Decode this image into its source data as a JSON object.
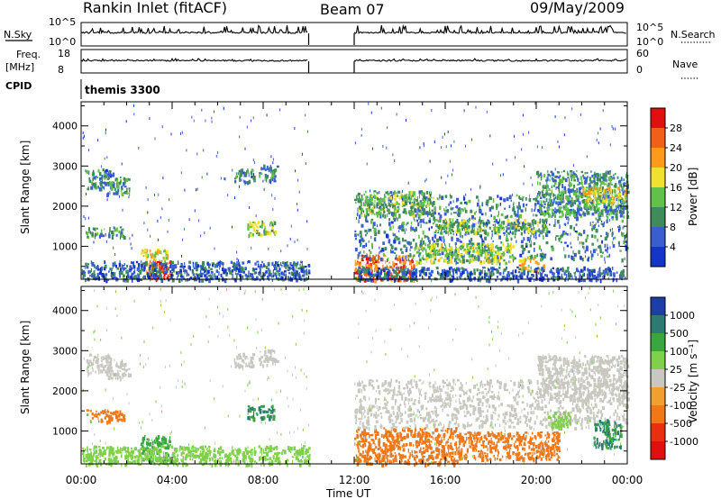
{
  "header": {
    "station": "Rankin Inlet (fitACF)",
    "beam": "Beam 07",
    "date": "09/May/2009"
  },
  "strip_panels": {
    "nsky_label": "N.Sky",
    "nsky_ticks": [
      "10^5",
      "10^0"
    ],
    "nsearch_label": "N.Search",
    "nsearch_ticks": [
      "10^5",
      "10^0"
    ],
    "freq_label": "Freq.",
    "freq_unit": "[MHz]",
    "freq_ticks": [
      "18",
      "8"
    ],
    "nave_label": "Nave",
    "nave_ticks": [
      "60",
      "0"
    ],
    "cpid_label": "CPID",
    "cpid_value": "themis 3300"
  },
  "colors": {
    "power": [
      "#1436c8",
      "#3a5dd0",
      "#3f8c5a",
      "#62c14a",
      "#f0e030",
      "#ff9a1a",
      "#f06018",
      "#e01010"
    ],
    "velocity": [
      "#1d3ea8",
      "#2d7a72",
      "#3aa640",
      "#7fd04a",
      "#c8c8c0",
      "#f0a030",
      "#f07818",
      "#e83010",
      "#e01010"
    ]
  },
  "chart_data": [
    {
      "type": "heatmap",
      "title": "",
      "xlabel": "",
      "ylabel": "Slant Range [km]",
      "x_ticks": [
        "00:00",
        "04:00",
        "08:00",
        "12:00",
        "16:00",
        "20:00",
        "00:00"
      ],
      "y_ticks": [
        "1000",
        "2000",
        "3000",
        "4000"
      ],
      "xlim_hours": [
        0,
        24
      ],
      "ylim_km": [
        180,
        4600
      ],
      "colorbar": {
        "label": "Power [dB]",
        "ticks": [
          "4",
          "8",
          "12",
          "16",
          "20",
          "24",
          "28"
        ],
        "range": [
          0,
          30
        ]
      },
      "data_gap_hours": [
        10,
        12
      ],
      "echo_regions": [
        {
          "t0": 0.2,
          "t1": 1.4,
          "r0": 2450,
          "r1": 2950,
          "value": 8
        },
        {
          "t0": 1.1,
          "t1": 2.1,
          "r0": 2300,
          "r1": 2750,
          "value": 10
        },
        {
          "t0": 0.2,
          "t1": 1.9,
          "r0": 1250,
          "r1": 1500,
          "value": 10
        },
        {
          "t0": 2.6,
          "t1": 3.8,
          "r0": 350,
          "r1": 950,
          "value": 16
        },
        {
          "t0": 3.0,
          "t1": 3.9,
          "r0": 200,
          "r1": 650,
          "value": 26
        },
        {
          "t0": 6.7,
          "t1": 7.6,
          "r0": 2600,
          "r1": 2950,
          "value": 8
        },
        {
          "t0": 7.8,
          "t1": 8.6,
          "r0": 2650,
          "r1": 3050,
          "value": 9
        },
        {
          "t0": 7.3,
          "t1": 8.5,
          "r0": 1300,
          "r1": 1650,
          "value": 14
        },
        {
          "t0": 0.0,
          "t1": 10.0,
          "r0": 180,
          "r1": 650,
          "value": 6
        },
        {
          "t0": 12.0,
          "t1": 14.6,
          "r0": 180,
          "r1": 800,
          "value": 24
        },
        {
          "t0": 12.0,
          "t1": 24.0,
          "r0": 700,
          "r1": 2300,
          "value": 8
        },
        {
          "t0": 12.1,
          "t1": 15.5,
          "r0": 1800,
          "r1": 2400,
          "value": 12
        },
        {
          "t0": 15.5,
          "t1": 20.5,
          "r0": 1350,
          "r1": 1700,
          "value": 12
        },
        {
          "t0": 20.0,
          "t1": 24.0,
          "r0": 1800,
          "r1": 2900,
          "value": 10
        },
        {
          "t0": 22.0,
          "t1": 24.0,
          "r0": 2100,
          "r1": 2500,
          "value": 18
        },
        {
          "t0": 19.2,
          "t1": 20.3,
          "r0": 400,
          "r1": 750,
          "value": 18
        },
        {
          "t0": 14.6,
          "t1": 19.0,
          "r0": 600,
          "r1": 1100,
          "value": 14
        },
        {
          "t0": 12.0,
          "t1": 24.0,
          "r0": 180,
          "r1": 500,
          "value": 6
        }
      ]
    },
    {
      "type": "heatmap",
      "title": "",
      "xlabel": "Time UT",
      "ylabel": "Slant Range [km]",
      "x_ticks": [
        "00:00",
        "04:00",
        "08:00",
        "12:00",
        "16:00",
        "20:00",
        "00:00"
      ],
      "y_ticks": [
        "1000",
        "2000",
        "3000",
        "4000"
      ],
      "xlim_hours": [
        0,
        24
      ],
      "ylim_km": [
        180,
        4600
      ],
      "colorbar": {
        "label": "Velocity [m s⁻¹]",
        "ticks": [
          "1000",
          "500",
          "100",
          "25",
          "-25",
          "-100",
          "-500",
          "-1000"
        ],
        "range": [
          -1000,
          1000
        ]
      },
      "data_gap_hours": [
        10,
        12
      ],
      "echo_regions": [
        {
          "t0": 0.2,
          "t1": 1.4,
          "r0": 2450,
          "r1": 2950,
          "value": 0
        },
        {
          "t0": 1.1,
          "t1": 2.1,
          "r0": 2300,
          "r1": 2750,
          "value": 0
        },
        {
          "t0": 0.2,
          "t1": 1.9,
          "r0": 1250,
          "r1": 1550,
          "value": -300
        },
        {
          "t0": 2.6,
          "t1": 3.9,
          "r0": 250,
          "r1": 900,
          "value": 200
        },
        {
          "t0": 6.7,
          "t1": 7.6,
          "r0": 2600,
          "r1": 2950,
          "value": 0
        },
        {
          "t0": 7.8,
          "t1": 8.6,
          "r0": 2650,
          "r1": 3050,
          "value": 0
        },
        {
          "t0": 7.3,
          "t1": 8.5,
          "r0": 1300,
          "r1": 1650,
          "value": 300
        },
        {
          "t0": 0.0,
          "t1": 10.0,
          "r0": 180,
          "r1": 650,
          "value": 60
        },
        {
          "t0": 12.0,
          "t1": 16.5,
          "r0": 180,
          "r1": 1100,
          "value": -300
        },
        {
          "t0": 16.5,
          "t1": 21.0,
          "r0": 300,
          "r1": 1000,
          "value": -200
        },
        {
          "t0": 12.0,
          "t1": 24.0,
          "r0": 1100,
          "r1": 2300,
          "value": 0
        },
        {
          "t0": 20.0,
          "t1": 24.0,
          "r0": 1800,
          "r1": 2900,
          "value": 0
        },
        {
          "t0": 22.5,
          "t1": 23.7,
          "r0": 600,
          "r1": 1300,
          "value": 300
        },
        {
          "t0": 20.5,
          "t1": 21.5,
          "r0": 1100,
          "r1": 1500,
          "value": 60
        }
      ]
    }
  ]
}
